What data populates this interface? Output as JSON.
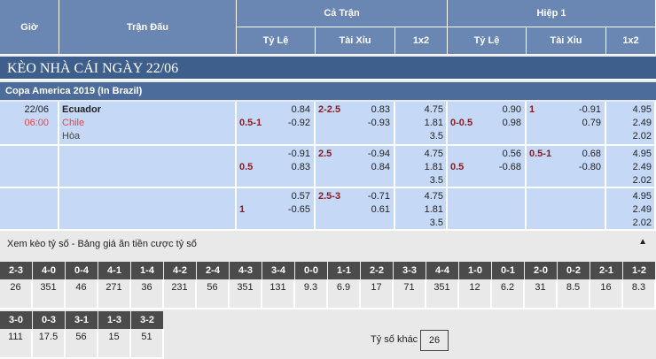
{
  "header": {
    "time": "Giờ",
    "match": "Trận Đấu",
    "full": "Cả Trận",
    "half": "Hiệp 1",
    "hdp": "Tỷ Lệ",
    "ou": "Tài Xỉu",
    "x12": "1x2"
  },
  "title": "KÈO NHÀ CÁI NGÀY 22/06",
  "league": "Copa America 2019 (In Brazil)",
  "match": {
    "date": "22/06",
    "time": "06:00",
    "home": "Ecuador",
    "away": "Chile",
    "draw": "Hòa"
  },
  "colors": {
    "header": "#6a86b3",
    "title_bar": "#3e5e8b",
    "row": "#c5d9f7",
    "line": "#8b1a22",
    "time": "#e0474c"
  },
  "rows": [
    {
      "hdp": {
        "line": "0.5-1",
        "a": "0.84",
        "b": "-0.92"
      },
      "ou": {
        "line": "2-2.5",
        "a": "0.83",
        "b": "-0.93"
      },
      "x12": [
        "4.75",
        "1.81",
        "3.5"
      ],
      "h1_hdp": {
        "line": "0-0.5",
        "a": "0.90",
        "b": "0.98"
      },
      "h1_ou": {
        "line": "1",
        "a": "-0.91",
        "b": "0.79"
      },
      "h1_x12": [
        "4.95",
        "2.49",
        "2.02"
      ]
    },
    {
      "hdp": {
        "line": "0.5",
        "a": "-0.91",
        "b": "0.83"
      },
      "ou": {
        "line": "2.5",
        "a": "-0.94",
        "b": "0.84"
      },
      "x12": [
        "4.75",
        "1.81",
        "3.5"
      ],
      "h1_hdp": {
        "line": "0.5",
        "a": "0.56",
        "b": "-0.68"
      },
      "h1_ou": {
        "line": "0.5-1",
        "a": "0.68",
        "b": "-0.80"
      },
      "h1_x12": [
        "4.95",
        "2.49",
        "2.02"
      ]
    },
    {
      "hdp": {
        "line": "1",
        "a": "0.57",
        "b": "-0.65"
      },
      "ou": {
        "line": "2.5-3",
        "a": "-0.71",
        "b": "0.61"
      },
      "x12": [
        "4.75",
        "1.81",
        "3.5"
      ],
      "h1_hdp": null,
      "h1_ou": null,
      "h1_x12": [
        "4.95",
        "2.49",
        "2.02"
      ]
    }
  ],
  "scores": {
    "title": "Xem kèo tỷ số - Bảng giá ăn tiền cược tỷ số",
    "collapse_icon": "triangle-up",
    "items": [
      [
        "2-3",
        "26"
      ],
      [
        "4-0",
        "351"
      ],
      [
        "0-4",
        "46"
      ],
      [
        "4-1",
        "271"
      ],
      [
        "1-4",
        "36"
      ],
      [
        "4-2",
        "231"
      ],
      [
        "2-4",
        "56"
      ],
      [
        "4-3",
        "351"
      ],
      [
        "3-4",
        "131"
      ],
      [
        "0-0",
        "9.3"
      ],
      [
        "1-1",
        "6.9"
      ],
      [
        "2-2",
        "17"
      ],
      [
        "3-3",
        "71"
      ],
      [
        "4-4",
        "351"
      ],
      [
        "1-0",
        "12"
      ],
      [
        "0-1",
        "6.2"
      ],
      [
        "2-0",
        "31"
      ],
      [
        "0-2",
        "8.5"
      ],
      [
        "2-1",
        "16"
      ],
      [
        "1-2",
        "8.3"
      ],
      [
        "3-0",
        "111"
      ],
      [
        "0-3",
        "17.5"
      ],
      [
        "3-1",
        "56"
      ],
      [
        "1-3",
        "15"
      ],
      [
        "3-2",
        "51"
      ]
    ],
    "other_label": "Tỷ số khác",
    "other_value": "26"
  }
}
